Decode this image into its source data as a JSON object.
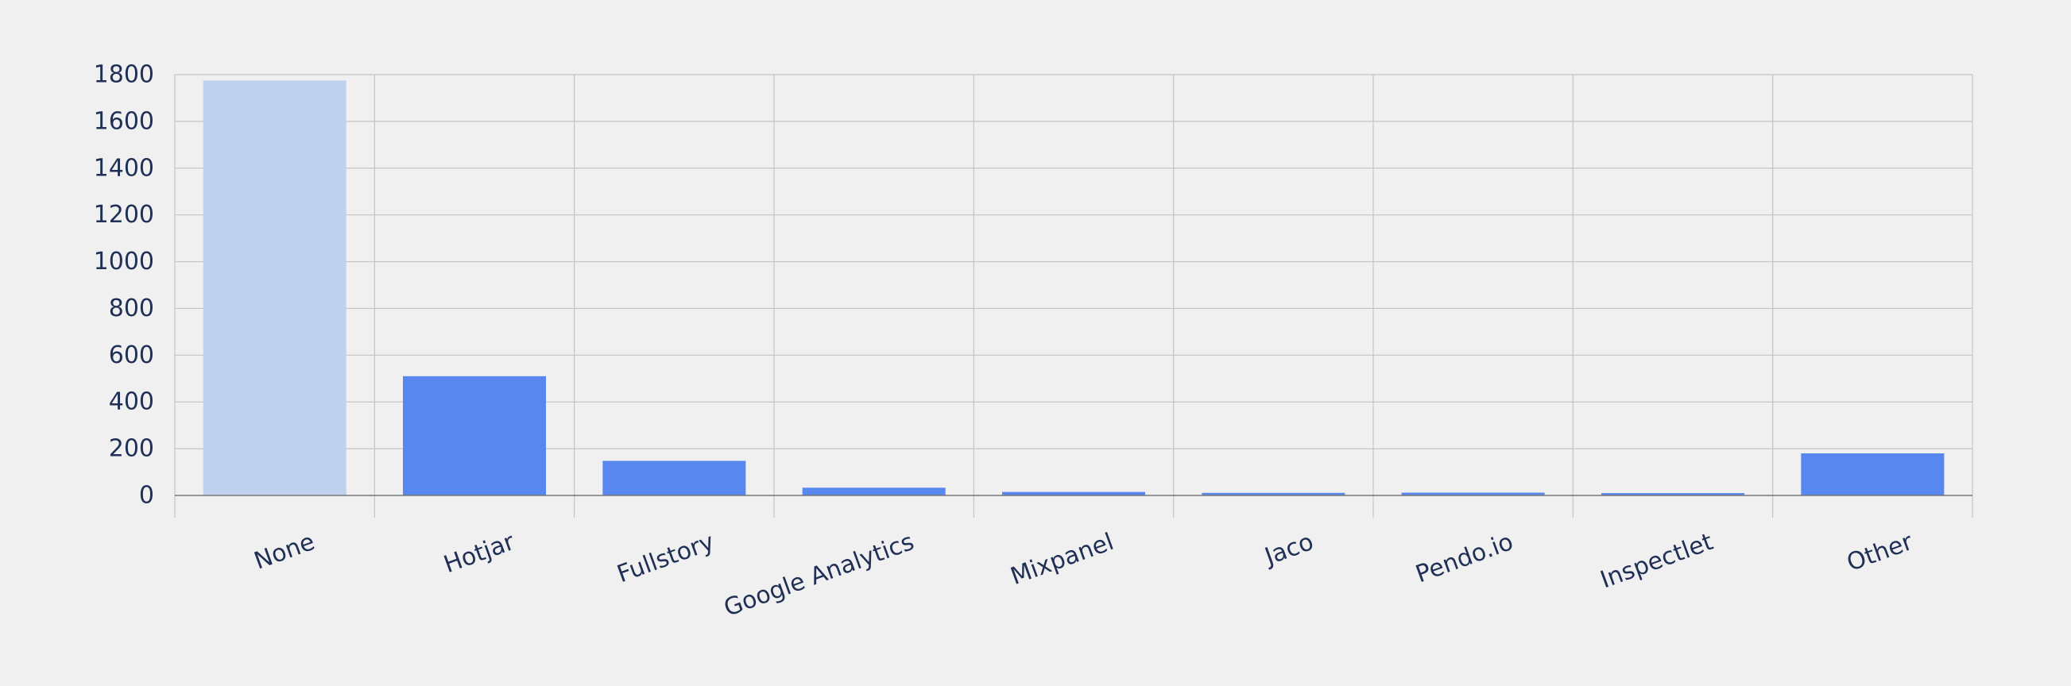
{
  "chart_data": {
    "type": "bar",
    "title": "",
    "xlabel": "",
    "ylabel": "",
    "categories": [
      "None",
      "Hotjar",
      "Fullstory",
      "Google Analytics",
      "Mixpanel",
      "Jaco",
      "Pendo.io",
      "Inspectlet",
      "Other"
    ],
    "values": [
      1775,
      510,
      148,
      33,
      15,
      11,
      12,
      10,
      180
    ],
    "highlight": [
      true,
      false,
      false,
      false,
      false,
      false,
      false,
      false,
      false
    ],
    "ylim": [
      0,
      1800
    ],
    "yticks": [
      0,
      200,
      400,
      600,
      800,
      1000,
      1200,
      1400,
      1600,
      1800
    ],
    "grid": true,
    "legend": "none",
    "colors": {
      "bar": "#5787ef",
      "bar_highlight": "#c0d0ef",
      "grid": "#c4c4c4",
      "axis": "#777777",
      "text": "#1f2f55",
      "background": "#f0f0f0"
    }
  }
}
